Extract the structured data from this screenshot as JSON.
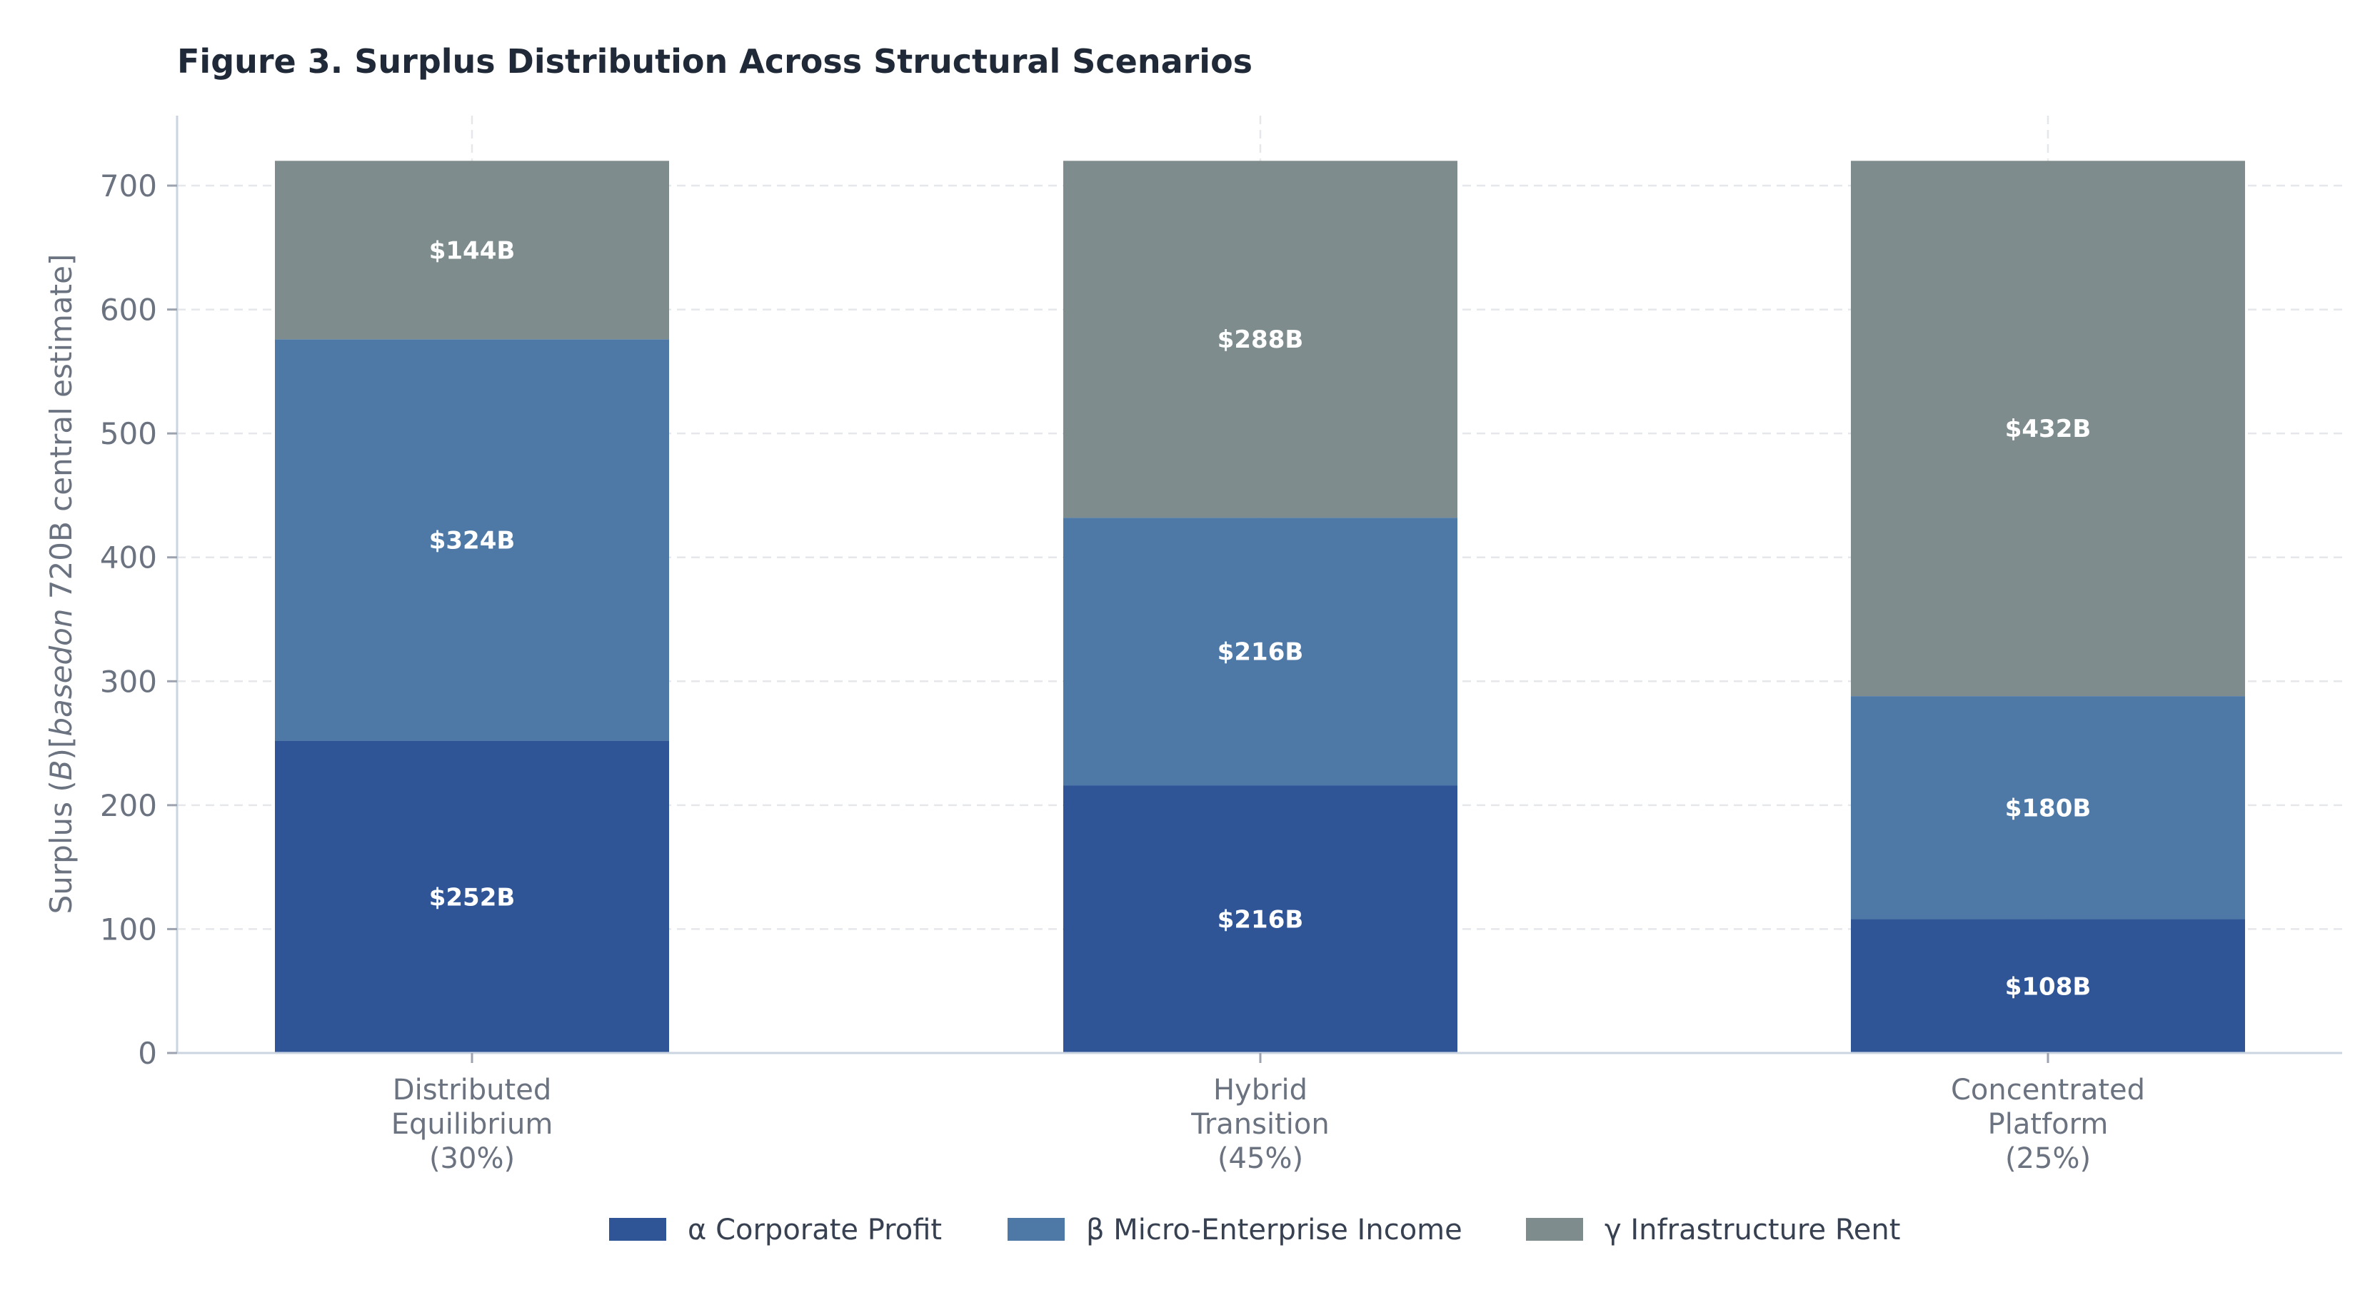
{
  "chart_data": {
    "type": "bar",
    "stacked": true,
    "title": "Figure 3.  Surplus Distribution Across Structural Scenarios",
    "ylabel_parts": [
      "Surplus (",
      "B",
      ")[",
      "basedon",
      " 720B central estimate]"
    ],
    "xlabel": "",
    "ylim": [
      0,
      720
    ],
    "yticks": [
      0,
      100,
      200,
      300,
      400,
      500,
      600,
      700
    ],
    "grid": true,
    "legend_position": "bottom-center",
    "categories": [
      [
        "Distributed",
        "Equilibrium",
        "(30%)"
      ],
      [
        "Hybrid",
        "Transition",
        "(45%)"
      ],
      [
        "Concentrated",
        "Platform",
        "(25%)"
      ]
    ],
    "series": [
      {
        "name": "α  Corporate Profit",
        "color": "#2f5597",
        "values": [
          252,
          216,
          108
        ],
        "labels": [
          "$252B",
          "$216B",
          "$108B"
        ]
      },
      {
        "name": "β  Micro-Enterprise Income",
        "color": "#4e79a7",
        "values": [
          324,
          216,
          180
        ],
        "labels": [
          "$324B",
          "$216B",
          "$180B"
        ]
      },
      {
        "name": "γ  Infrastructure Rent",
        "color": "#7f8c8d",
        "values": [
          144,
          288,
          432
        ],
        "labels": [
          "$144B",
          "$288B",
          "$432B"
        ]
      }
    ]
  }
}
